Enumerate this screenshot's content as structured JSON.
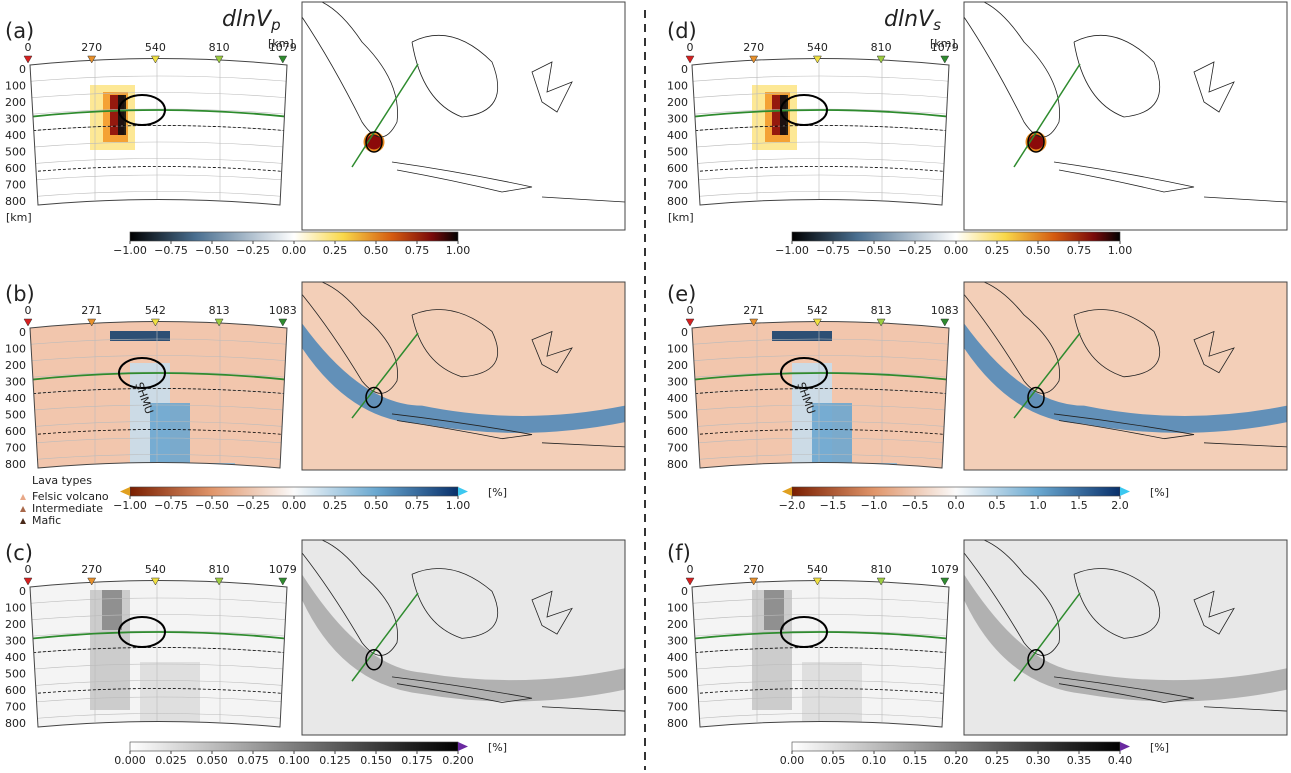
{
  "columns": [
    {
      "title": {
        "base": "dlnV",
        "sub": "p"
      },
      "panels": [
        {
          "label": "(a)",
          "distance_ticks": [
            "0",
            "270",
            "540",
            "810",
            "1079"
          ],
          "depth_ticks": [
            "0",
            "100",
            "200",
            "300",
            "400",
            "500",
            "600",
            "700",
            "800"
          ],
          "distance_unit": "[km]",
          "depth_unit": "[km]",
          "colorbar": {
            "ticks": [
              "−1.00",
              "−0.75",
              "−0.50",
              "−0.25",
              "0.00",
              "0.25",
              "0.50",
              "0.75",
              "1.00"
            ]
          }
        },
        {
          "label": "(b)",
          "distance_ticks": [
            "0",
            "271",
            "542",
            "813",
            "1083"
          ],
          "depth_ticks": [
            "0",
            "100",
            "200",
            "300",
            "400",
            "500",
            "600",
            "700",
            "800"
          ],
          "annotation": "SHMU",
          "legend": {
            "title": "Lava types",
            "items": [
              "Felsic volcano",
              "Intermediate",
              "Mafic"
            ]
          },
          "colorbar": {
            "ticks": [
              "−1.00",
              "−0.75",
              "−0.50",
              "−0.25",
              "0.00",
              "0.25",
              "0.50",
              "0.75",
              "1.00"
            ],
            "unit": "[%]"
          }
        },
        {
          "label": "(c)",
          "distance_ticks": [
            "0",
            "270",
            "540",
            "810",
            "1079"
          ],
          "depth_ticks": [
            "0",
            "100",
            "200",
            "300",
            "400",
            "500",
            "600",
            "700",
            "800"
          ],
          "colorbar": {
            "ticks": [
              "0.000",
              "0.025",
              "0.050",
              "0.075",
              "0.100",
              "0.125",
              "0.150",
              "0.175",
              "0.200"
            ],
            "unit": "[%]"
          }
        }
      ]
    },
    {
      "title": {
        "base": "dlnV",
        "sub": "s"
      },
      "panels": [
        {
          "label": "(d)",
          "distance_ticks": [
            "0",
            "270",
            "540",
            "810",
            "1079"
          ],
          "depth_ticks": [
            "0",
            "100",
            "200",
            "300",
            "400",
            "500",
            "600",
            "700",
            "800"
          ],
          "distance_unit": "[km]",
          "depth_unit": "[km]",
          "colorbar": {
            "ticks": [
              "−1.00",
              "−0.75",
              "−0.50",
              "−0.25",
              "0.00",
              "0.25",
              "0.50",
              "0.75",
              "1.00"
            ]
          }
        },
        {
          "label": "(e)",
          "distance_ticks": [
            "0",
            "271",
            "542",
            "813",
            "1083"
          ],
          "depth_ticks": [
            "0",
            "100",
            "200",
            "300",
            "400",
            "500",
            "600",
            "700",
            "800"
          ],
          "annotation": "SHMU",
          "colorbar": {
            "ticks": [
              "−2.0",
              "−1.5",
              "−1.0",
              "−0.5",
              "0.0",
              "0.5",
              "1.0",
              "1.5",
              "2.0"
            ],
            "unit": "[%]"
          }
        },
        {
          "label": "(f)",
          "distance_ticks": [
            "0",
            "270",
            "540",
            "810",
            "1079"
          ],
          "depth_ticks": [
            "0",
            "100",
            "200",
            "300",
            "400",
            "500",
            "600",
            "700",
            "800"
          ],
          "colorbar": {
            "ticks": [
              "0.00",
              "0.05",
              "0.10",
              "0.15",
              "0.20",
              "0.25",
              "0.30",
              "0.35",
              "0.40"
            ],
            "unit": "[%]"
          }
        }
      ]
    }
  ]
}
